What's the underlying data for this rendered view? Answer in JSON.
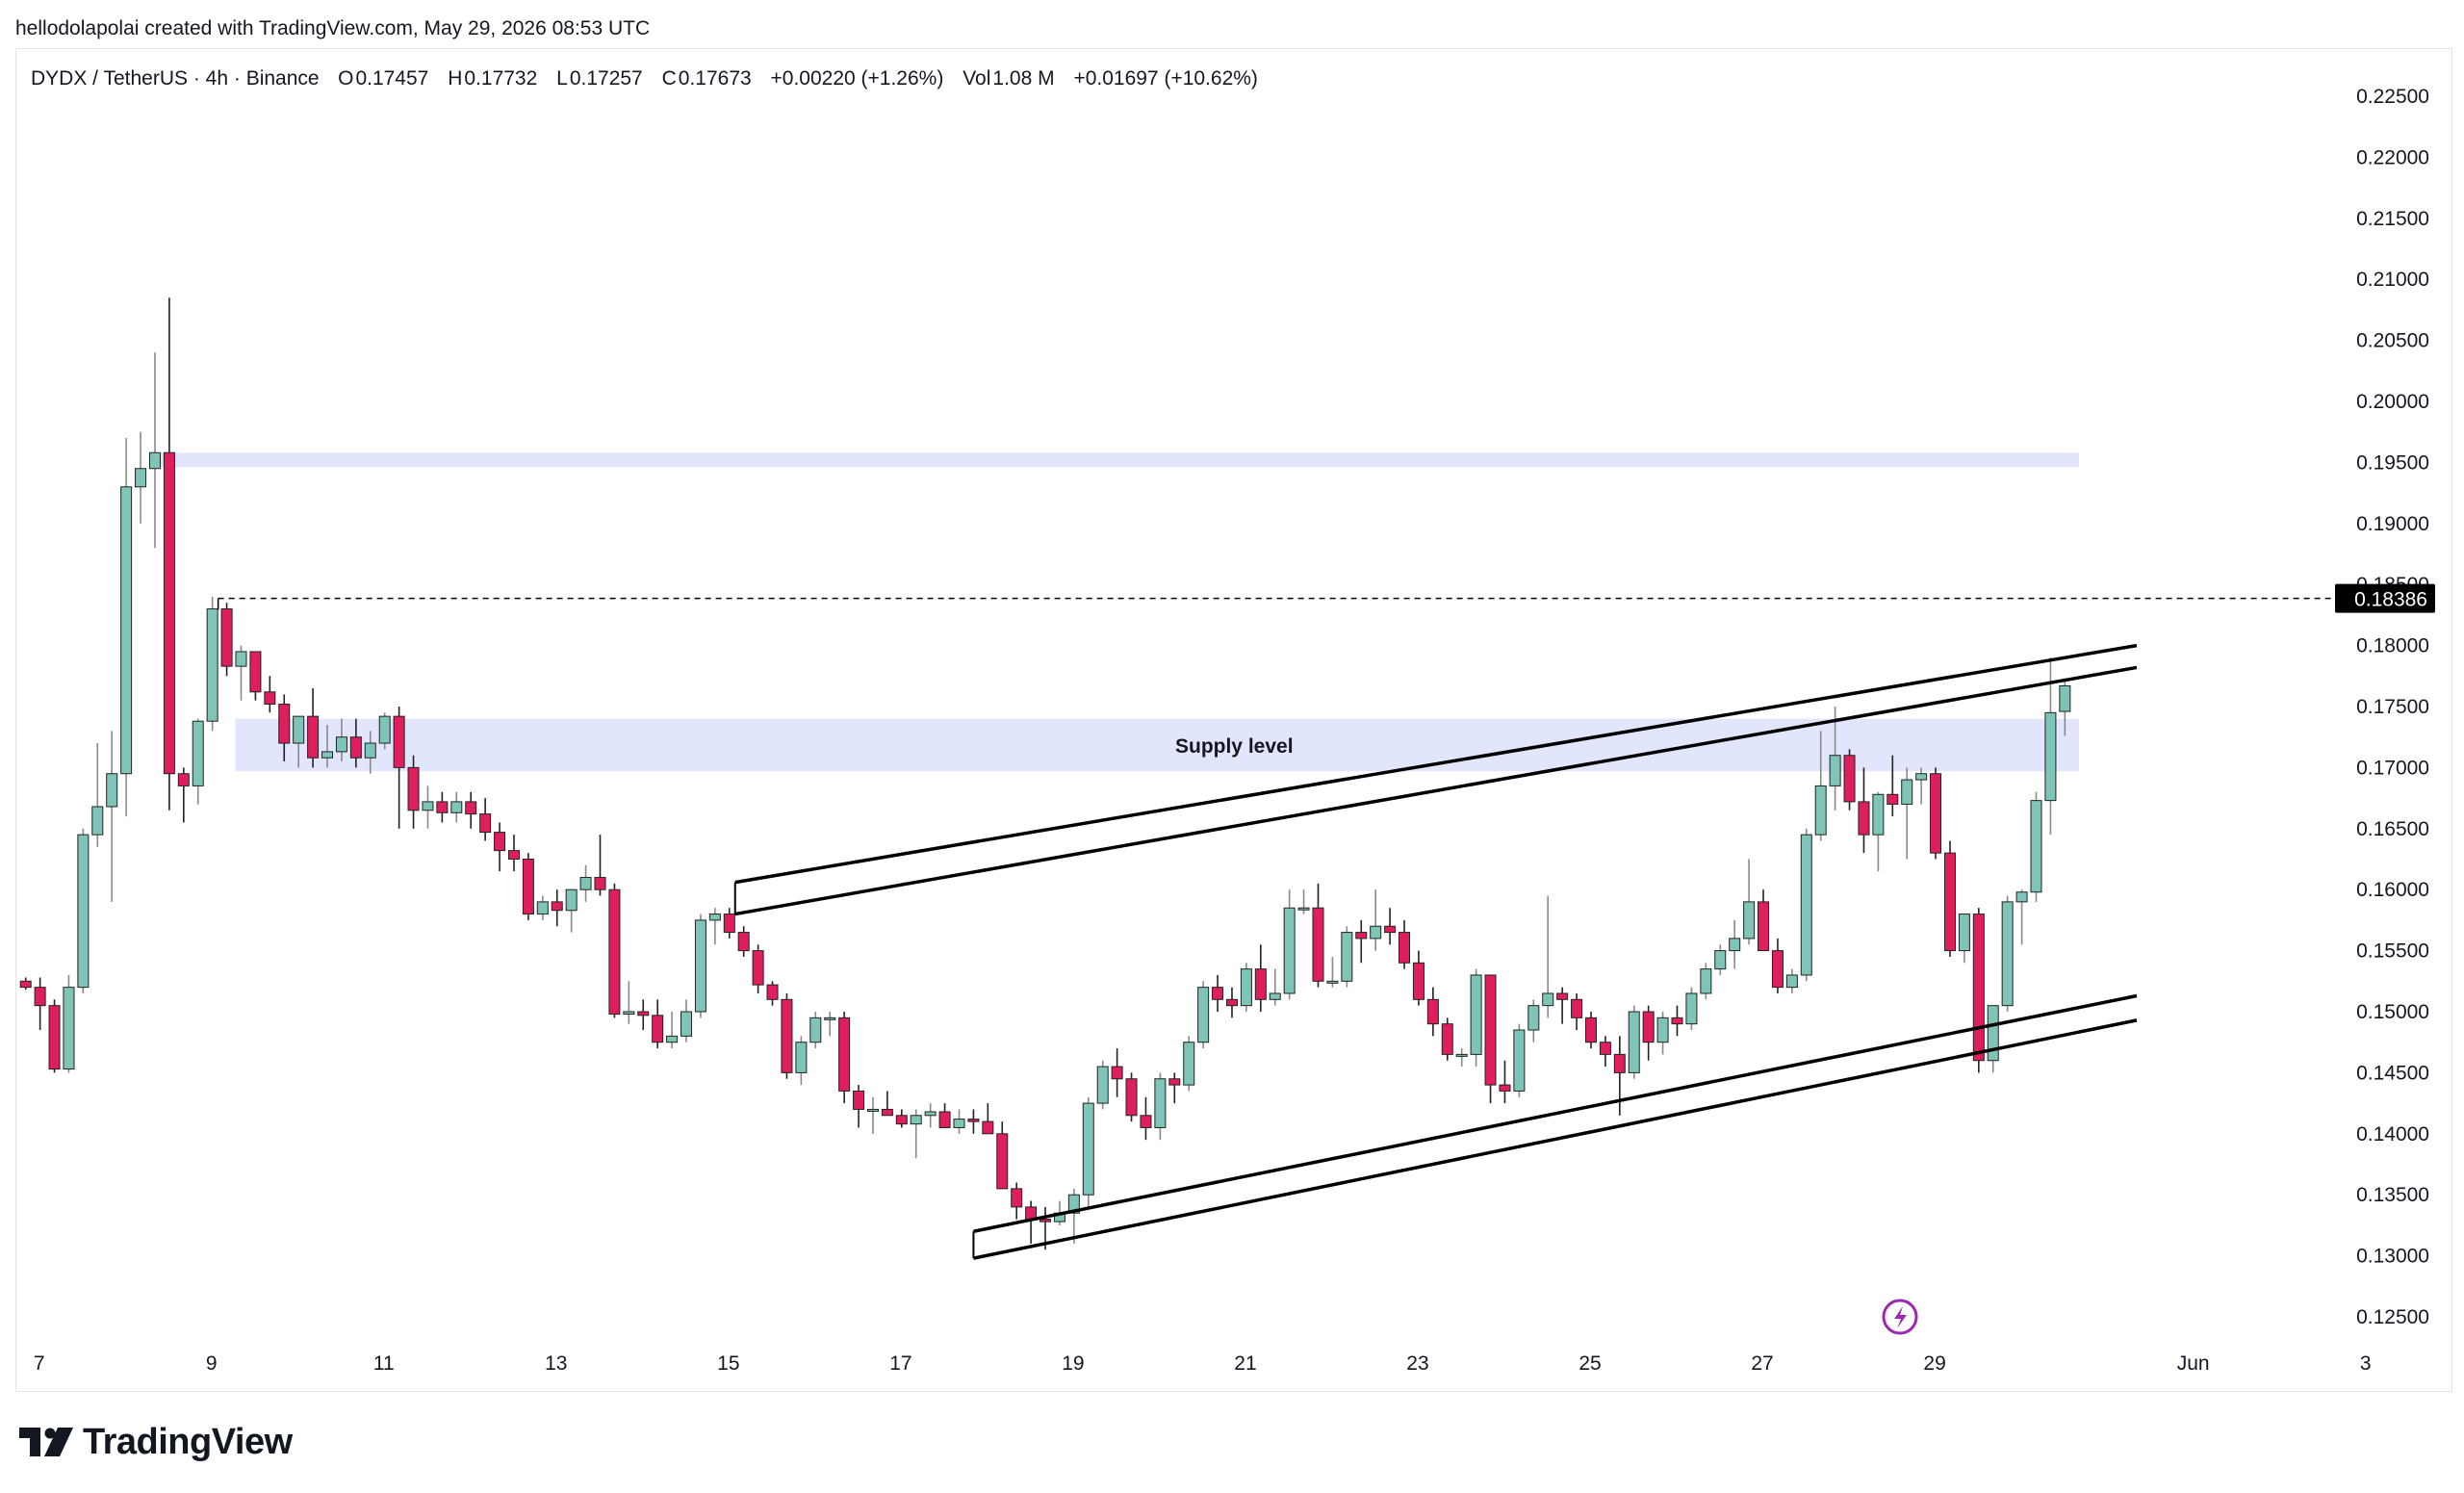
{
  "header": {
    "credit": "hellodolapolai created with TradingView.com, May 29, 2026 08:53 UTC"
  },
  "legend": {
    "symbol": "DYDX / TetherUS · 4h · Binance",
    "open_label": "O",
    "open": "0.17457",
    "high_label": "H",
    "high": "0.17732",
    "low_label": "L",
    "low": "0.17257",
    "close_label": "C",
    "close": "0.17673",
    "change": "+0.00220 (+1.26%)",
    "vol_label": "Vol",
    "vol": "1.08 M",
    "extra_change": "+0.01697 (+10.62%)"
  },
  "logo": {
    "text": "TradingView",
    "icon": "tradingview-logo-icon"
  },
  "annotations": {
    "supply_label": "Supply level",
    "price_tag": "0.18386"
  },
  "colors": {
    "up": "#7ec4b7",
    "down": "#de1f5c",
    "zone": "#e1e6fd",
    "line": "#000000",
    "text": "#131722",
    "price_tag_bg": "#000000",
    "lightning": "#9c27b0"
  },
  "chart_data": {
    "type": "candlestick",
    "symbol": "DYDX / TetherUS",
    "interval": "4h",
    "exchange": "Binance",
    "ylim": [
      0.1225,
      0.2275
    ],
    "y_ticks": [
      "0.22500",
      "0.22000",
      "0.21500",
      "0.21000",
      "0.20500",
      "0.20000",
      "0.19500",
      "0.19000",
      "0.18500",
      "0.18000",
      "0.17500",
      "0.17000",
      "0.16500",
      "0.16000",
      "0.15500",
      "0.15000",
      "0.14500",
      "0.14000",
      "0.13500",
      "0.13000",
      "0.12500"
    ],
    "x_ticks": [
      {
        "label": "7",
        "t": 0.4
      },
      {
        "label": "9",
        "t": 12.4
      },
      {
        "label": "11",
        "t": 24.4
      },
      {
        "label": "13",
        "t": 36.4
      },
      {
        "label": "15",
        "t": 48.4
      },
      {
        "label": "17",
        "t": 60.4
      },
      {
        "label": "19",
        "t": 72.4
      },
      {
        "label": "21",
        "t": 84.4
      },
      {
        "label": "23",
        "t": 96.4
      },
      {
        "label": "25",
        "t": 108.4
      },
      {
        "label": "27",
        "t": 120.4
      },
      {
        "label": "29",
        "t": 132.4
      },
      {
        "label": "Jun",
        "t": 150.4
      },
      {
        "label": "3",
        "t": 162.4
      }
    ],
    "candles": [
      [
        0.1525,
        0.1528,
        0.1518,
        0.152
      ],
      [
        0.152,
        0.1528,
        0.1485,
        0.1505
      ],
      [
        0.1505,
        0.151,
        0.145,
        0.1453
      ],
      [
        0.1453,
        0.153,
        0.145,
        0.152
      ],
      [
        0.152,
        0.165,
        0.1515,
        0.1645
      ],
      [
        0.1645,
        0.172,
        0.1635,
        0.1668
      ],
      [
        0.1668,
        0.173,
        0.159,
        0.1695
      ],
      [
        0.1695,
        0.197,
        0.166,
        0.193
      ],
      [
        0.193,
        0.1975,
        0.19,
        0.1945
      ],
      [
        0.1945,
        0.204,
        0.188,
        0.1958
      ],
      [
        0.1958,
        0.2085,
        0.1665,
        0.1695
      ],
      [
        0.1695,
        0.17,
        0.1655,
        0.1685
      ],
      [
        0.1685,
        0.174,
        0.167,
        0.1738
      ],
      [
        0.1738,
        0.184,
        0.173,
        0.183
      ],
      [
        0.183,
        0.1835,
        0.1775,
        0.1783
      ],
      [
        0.1783,
        0.18,
        0.1755,
        0.1795
      ],
      [
        0.1795,
        0.1795,
        0.1755,
        0.1762
      ],
      [
        0.1762,
        0.1775,
        0.1745,
        0.1752
      ],
      [
        0.1752,
        0.176,
        0.1705,
        0.172
      ],
      [
        0.172,
        0.174,
        0.17,
        0.1742
      ],
      [
        0.1742,
        0.1765,
        0.17,
        0.1708
      ],
      [
        0.1708,
        0.1735,
        0.17,
        0.1713
      ],
      [
        0.1713,
        0.174,
        0.1705,
        0.1725
      ],
      [
        0.1725,
        0.174,
        0.17,
        0.1708
      ],
      [
        0.1708,
        0.173,
        0.1695,
        0.172
      ],
      [
        0.172,
        0.1745,
        0.1715,
        0.1742
      ],
      [
        0.1742,
        0.175,
        0.165,
        0.17
      ],
      [
        0.17,
        0.171,
        0.165,
        0.1665
      ],
      [
        0.1665,
        0.1685,
        0.165,
        0.1672
      ],
      [
        0.1672,
        0.168,
        0.1655,
        0.1663
      ],
      [
        0.1663,
        0.168,
        0.1655,
        0.1672
      ],
      [
        0.1672,
        0.168,
        0.165,
        0.1662
      ],
      [
        0.1662,
        0.1675,
        0.164,
        0.1647
      ],
      [
        0.1647,
        0.1655,
        0.1615,
        0.1632
      ],
      [
        0.1632,
        0.1645,
        0.1615,
        0.1625
      ],
      [
        0.1625,
        0.163,
        0.1575,
        0.158
      ],
      [
        0.158,
        0.1595,
        0.1575,
        0.159
      ],
      [
        0.159,
        0.16,
        0.157,
        0.1583
      ],
      [
        0.1583,
        0.16,
        0.1565,
        0.16
      ],
      [
        0.16,
        0.162,
        0.159,
        0.161
      ],
      [
        0.161,
        0.1645,
        0.1595,
        0.16
      ],
      [
        0.16,
        0.1605,
        0.1495,
        0.1498
      ],
      [
        0.1498,
        0.1525,
        0.149,
        0.15
      ],
      [
        0.15,
        0.151,
        0.1485,
        0.1497
      ],
      [
        0.1497,
        0.151,
        0.147,
        0.1475
      ],
      [
        0.1475,
        0.15,
        0.147,
        0.148
      ],
      [
        0.148,
        0.151,
        0.1475,
        0.15
      ],
      [
        0.15,
        0.158,
        0.1495,
        0.1575
      ],
      [
        0.1575,
        0.1585,
        0.1555,
        0.158
      ],
      [
        0.158,
        0.1585,
        0.156,
        0.1565
      ],
      [
        0.1565,
        0.157,
        0.1545,
        0.155
      ],
      [
        0.155,
        0.1555,
        0.1515,
        0.1522
      ],
      [
        0.1522,
        0.1525,
        0.1505,
        0.151
      ],
      [
        0.151,
        0.1515,
        0.1445,
        0.145
      ],
      [
        0.145,
        0.148,
        0.144,
        0.1475
      ],
      [
        0.1475,
        0.15,
        0.147,
        0.1495
      ],
      [
        0.1495,
        0.15,
        0.148,
        0.1495
      ],
      [
        0.1495,
        0.15,
        0.1425,
        0.1435
      ],
      [
        0.1435,
        0.144,
        0.1405,
        0.142
      ],
      [
        0.142,
        0.143,
        0.14,
        0.142
      ],
      [
        0.142,
        0.1435,
        0.1415,
        0.1415
      ],
      [
        0.1415,
        0.142,
        0.1405,
        0.1408
      ],
      [
        0.1408,
        0.142,
        0.138,
        0.1415
      ],
      [
        0.1415,
        0.1425,
        0.1405,
        0.1418
      ],
      [
        0.1418,
        0.1425,
        0.1405,
        0.1405
      ],
      [
        0.1405,
        0.142,
        0.14,
        0.1412
      ],
      [
        0.1412,
        0.142,
        0.14,
        0.141
      ],
      [
        0.141,
        0.1425,
        0.14,
        0.14
      ],
      [
        0.14,
        0.141,
        0.1355,
        0.1355
      ],
      [
        0.1355,
        0.136,
        0.133,
        0.134
      ],
      [
        0.134,
        0.1345,
        0.131,
        0.133
      ],
      [
        0.133,
        0.134,
        0.1305,
        0.1328
      ],
      [
        0.1328,
        0.1345,
        0.1325,
        0.1335
      ],
      [
        0.1335,
        0.1355,
        0.131,
        0.135
      ],
      [
        0.135,
        0.143,
        0.134,
        0.1425
      ],
      [
        0.1425,
        0.146,
        0.142,
        0.1455
      ],
      [
        0.1455,
        0.147,
        0.143,
        0.1445
      ],
      [
        0.1445,
        0.145,
        0.141,
        0.1415
      ],
      [
        0.1415,
        0.143,
        0.1395,
        0.1405
      ],
      [
        0.1405,
        0.145,
        0.1395,
        0.1445
      ],
      [
        0.1445,
        0.145,
        0.1425,
        0.144
      ],
      [
        0.144,
        0.148,
        0.1435,
        0.1475
      ],
      [
        0.1475,
        0.1525,
        0.147,
        0.152
      ],
      [
        0.152,
        0.153,
        0.15,
        0.151
      ],
      [
        0.151,
        0.152,
        0.1495,
        0.1505
      ],
      [
        0.1505,
        0.154,
        0.15,
        0.1535
      ],
      [
        0.1535,
        0.1555,
        0.15,
        0.151
      ],
      [
        0.151,
        0.1535,
        0.1505,
        0.1515
      ],
      [
        0.1515,
        0.16,
        0.151,
        0.1585
      ],
      [
        0.1585,
        0.16,
        0.158,
        0.1585
      ],
      [
        0.1585,
        0.1605,
        0.152,
        0.1525
      ],
      [
        0.1525,
        0.1545,
        0.152,
        0.1525
      ],
      [
        0.1525,
        0.157,
        0.152,
        0.1565
      ],
      [
        0.1565,
        0.1575,
        0.154,
        0.156
      ],
      [
        0.156,
        0.16,
        0.155,
        0.157
      ],
      [
        0.157,
        0.1585,
        0.1555,
        0.1565
      ],
      [
        0.1565,
        0.1575,
        0.1535,
        0.154
      ],
      [
        0.154,
        0.155,
        0.1505,
        0.151
      ],
      [
        0.151,
        0.152,
        0.148,
        0.149
      ],
      [
        0.149,
        0.1495,
        0.146,
        0.1465
      ],
      [
        0.1465,
        0.147,
        0.1455,
        0.1465
      ],
      [
        0.1465,
        0.1535,
        0.1455,
        0.153
      ],
      [
        0.153,
        0.153,
        0.1425,
        0.144
      ],
      [
        0.144,
        0.146,
        0.1425,
        0.1435
      ],
      [
        0.1435,
        0.149,
        0.143,
        0.1485
      ],
      [
        0.1485,
        0.151,
        0.1475,
        0.1505
      ],
      [
        0.1505,
        0.1595,
        0.1495,
        0.1515
      ],
      [
        0.1515,
        0.152,
        0.149,
        0.151
      ],
      [
        0.151,
        0.1515,
        0.1485,
        0.1495
      ],
      [
        0.1495,
        0.15,
        0.147,
        0.1475
      ],
      [
        0.1475,
        0.148,
        0.1455,
        0.1465
      ],
      [
        0.1465,
        0.148,
        0.1415,
        0.145
      ],
      [
        0.145,
        0.1505,
        0.1445,
        0.15
      ],
      [
        0.15,
        0.1505,
        0.146,
        0.1475
      ],
      [
        0.1475,
        0.15,
        0.1465,
        0.1495
      ],
      [
        0.1495,
        0.1505,
        0.148,
        0.149
      ],
      [
        0.149,
        0.152,
        0.1485,
        0.1515
      ],
      [
        0.1515,
        0.154,
        0.151,
        0.1535
      ],
      [
        0.1535,
        0.1555,
        0.153,
        0.155
      ],
      [
        0.155,
        0.1575,
        0.1535,
        0.156
      ],
      [
        0.156,
        0.1625,
        0.1555,
        0.159
      ],
      [
        0.159,
        0.16,
        0.155,
        0.155
      ],
      [
        0.155,
        0.156,
        0.1515,
        0.152
      ],
      [
        0.152,
        0.1535,
        0.1515,
        0.153
      ],
      [
        0.153,
        0.165,
        0.1525,
        0.1645
      ],
      [
        0.1645,
        0.173,
        0.164,
        0.1685
      ],
      [
        0.1685,
        0.175,
        0.1665,
        0.171
      ],
      [
        0.171,
        0.1715,
        0.1665,
        0.1672
      ],
      [
        0.1672,
        0.17,
        0.163,
        0.1645
      ],
      [
        0.1645,
        0.168,
        0.1615,
        0.1678
      ],
      [
        0.1678,
        0.171,
        0.166,
        0.167
      ],
      [
        0.167,
        0.17,
        0.1625,
        0.169
      ],
      [
        0.169,
        0.17,
        0.167,
        0.1695
      ],
      [
        0.1695,
        0.17,
        0.1625,
        0.163
      ],
      [
        0.163,
        0.164,
        0.1545,
        0.155
      ],
      [
        0.155,
        0.158,
        0.154,
        0.158
      ],
      [
        0.158,
        0.1585,
        0.145,
        0.146
      ],
      [
        0.146,
        0.1505,
        0.145,
        0.1505
      ],
      [
        0.1505,
        0.1595,
        0.15,
        0.159
      ],
      [
        0.159,
        0.16,
        0.1555,
        0.1598
      ],
      [
        0.1598,
        0.168,
        0.159,
        0.1673
      ],
      [
        0.1673,
        0.179,
        0.1645,
        0.1745
      ],
      [
        0.1746,
        0.1773,
        0.1726,
        0.1767
      ]
    ],
    "zones": [
      {
        "name": "upper-zone",
        "top": 0.1958,
        "bottom": 0.1946
      },
      {
        "name": "supply-level-zone",
        "label": "Supply level",
        "top": 0.174,
        "bottom": 0.1697
      }
    ],
    "dashed_level": 0.18386,
    "trendlines": [
      {
        "name": "channel-upper-line-1",
        "t1": 49.4,
        "p1": 0.1606,
        "t2": 147.0,
        "p2": 0.18
      },
      {
        "name": "channel-upper-line-2",
        "t1": 49.4,
        "p1": 0.158,
        "t2": 147.0,
        "p2": 0.1782
      },
      {
        "name": "channel-lower-line-1",
        "t1": 66.0,
        "p1": 0.132,
        "t2": 147.0,
        "p2": 0.1513
      },
      {
        "name": "channel-lower-line-2",
        "t1": 66.0,
        "p1": 0.1298,
        "t2": 147.0,
        "p2": 0.1493
      }
    ],
    "channel_start_ticks": [
      {
        "t": 49.4,
        "p1": 0.1606,
        "p2": 0.158
      },
      {
        "t": 66.0,
        "p1": 0.132,
        "p2": 0.1298
      }
    ]
  }
}
